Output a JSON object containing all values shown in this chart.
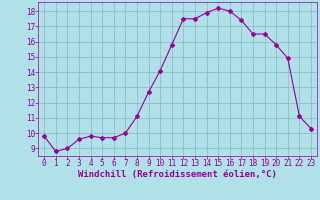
{
  "x": [
    0,
    1,
    2,
    3,
    4,
    5,
    6,
    7,
    8,
    9,
    10,
    11,
    12,
    13,
    14,
    15,
    16,
    17,
    18,
    19,
    20,
    21,
    22,
    23
  ],
  "y": [
    9.8,
    8.8,
    9.0,
    9.6,
    9.8,
    9.7,
    9.7,
    10.0,
    11.1,
    12.7,
    14.1,
    15.8,
    17.5,
    17.5,
    17.9,
    18.2,
    18.0,
    17.4,
    16.5,
    16.5,
    15.8,
    14.9,
    11.1,
    10.3
  ],
  "line_color": "#990099",
  "marker": "D",
  "marker_size": 2.0,
  "bg_color": "#b0e0e8",
  "grid_color": "#8ab8c0",
  "xlabel": "Windchill (Refroidissement éolien,°C)",
  "xlabel_color": "#990099",
  "tick_color": "#990099",
  "label_color": "#990099",
  "ylim": [
    8.5,
    18.6
  ],
  "xlim": [
    -0.5,
    23.5
  ],
  "yticks": [
    9,
    10,
    11,
    12,
    13,
    14,
    15,
    16,
    17,
    18
  ],
  "xticks": [
    0,
    1,
    2,
    3,
    4,
    5,
    6,
    7,
    8,
    9,
    10,
    11,
    12,
    13,
    14,
    15,
    16,
    17,
    18,
    19,
    20,
    21,
    22,
    23
  ],
  "tick_fontsize": 5.5,
  "xlabel_fontsize": 6.5,
  "line_width": 0.8
}
